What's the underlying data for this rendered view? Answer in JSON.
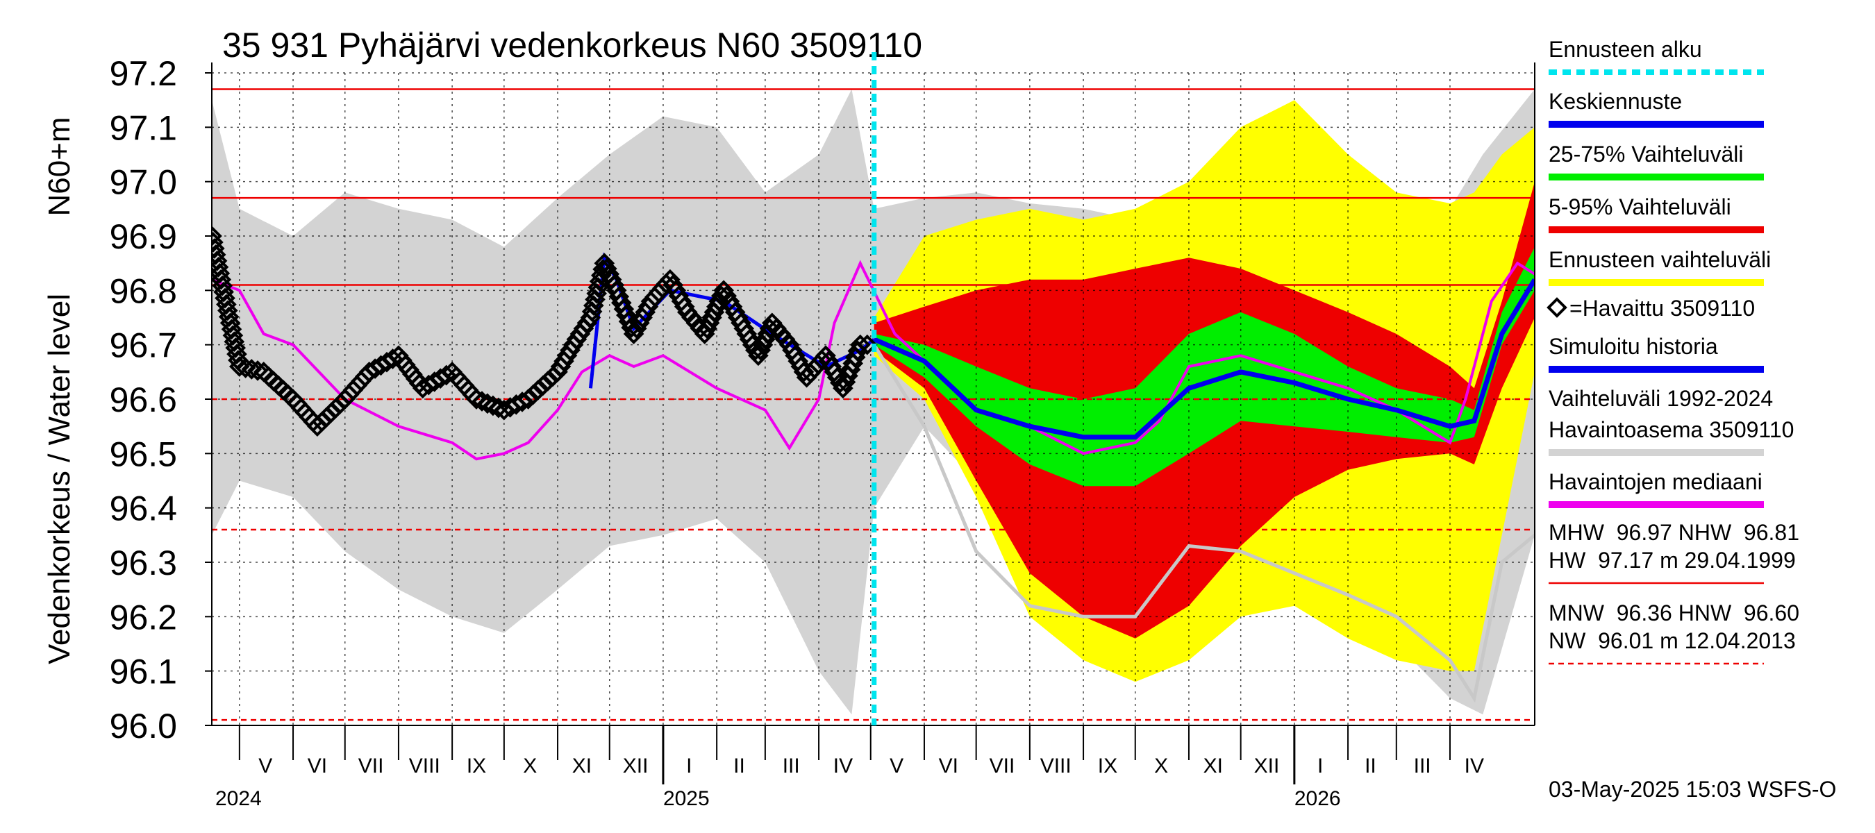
{
  "chart_data": {
    "type": "area",
    "title": "35 931 Pyhäjärvi vedenkorkeus N60 3509110",
    "ylabel_left": "Vedenkorkeus / Water level",
    "ylabel_right": "N60+m",
    "ylim": [
      96.0,
      97.2
    ],
    "yticks": [
      "96.0",
      "96.1",
      "96.2",
      "96.3",
      "96.4",
      "96.5",
      "96.6",
      "96.7",
      "96.8",
      "96.9",
      "97.0",
      "97.1",
      "97.2"
    ],
    "x_range": [
      "2024-04-15",
      "2026-05-20"
    ],
    "month_labels": [
      {
        "label": "V",
        "date": "2024-05-16"
      },
      {
        "label": "VI",
        "date": "2024-06-15"
      },
      {
        "label": "VII",
        "date": "2024-07-16"
      },
      {
        "label": "VIII",
        "date": "2024-08-16"
      },
      {
        "label": "IX",
        "date": "2024-09-15"
      },
      {
        "label": "X",
        "date": "2024-10-16"
      },
      {
        "label": "XI",
        "date": "2024-11-15"
      },
      {
        "label": "XII",
        "date": "2024-12-16"
      },
      {
        "label": "I",
        "date": "2025-01-16"
      },
      {
        "label": "II",
        "date": "2025-02-14"
      },
      {
        "label": "III",
        "date": "2025-03-16"
      },
      {
        "label": "IV",
        "date": "2025-04-15"
      },
      {
        "label": "V",
        "date": "2025-05-16"
      },
      {
        "label": "VI",
        "date": "2025-06-15"
      },
      {
        "label": "VII",
        "date": "2025-07-16"
      },
      {
        "label": "VIII",
        "date": "2025-08-16"
      },
      {
        "label": "IX",
        "date": "2025-09-15"
      },
      {
        "label": "X",
        "date": "2025-10-16"
      },
      {
        "label": "XI",
        "date": "2025-11-15"
      },
      {
        "label": "XII",
        "date": "2025-12-16"
      },
      {
        "label": "I",
        "date": "2026-01-16"
      },
      {
        "label": "II",
        "date": "2026-02-14"
      },
      {
        "label": "III",
        "date": "2026-03-16"
      },
      {
        "label": "IV",
        "date": "2026-04-15"
      }
    ],
    "year_labels": [
      {
        "label": "2024",
        "date": "2024-04-15"
      },
      {
        "label": "2025",
        "date": "2025-01-01"
      },
      {
        "label": "2026",
        "date": "2026-01-01"
      }
    ],
    "forecast_start": "2025-05-03",
    "reference_lines": [
      {
        "name": "HW",
        "value": 97.17,
        "style": "solid"
      },
      {
        "name": "MHW",
        "value": 96.97,
        "style": "solid"
      },
      {
        "name": "NHW",
        "value": 96.81,
        "style": "solid"
      },
      {
        "name": "HNW",
        "value": 96.6,
        "style": "dashed"
      },
      {
        "name": "MNW",
        "value": 96.36,
        "style": "dashed"
      },
      {
        "name": "NW",
        "value": 96.01,
        "style": "dashed"
      }
    ],
    "historical_range": {
      "x": [
        "2024-04-15",
        "2024-05-01",
        "2024-06-01",
        "2024-07-01",
        "2024-08-01",
        "2024-09-01",
        "2024-10-01",
        "2024-11-01",
        "2024-12-01",
        "2025-01-01",
        "2025-02-01",
        "2025-03-01",
        "2025-04-01",
        "2025-04-20",
        "2025-05-03",
        "2025-06-01",
        "2025-07-01",
        "2025-08-01",
        "2025-09-01",
        "2025-10-01",
        "2025-11-01",
        "2025-12-01",
        "2026-01-01",
        "2026-02-01",
        "2026-03-01",
        "2026-04-01",
        "2026-04-20",
        "2026-05-20"
      ],
      "low": [
        96.35,
        96.45,
        96.42,
        96.32,
        96.25,
        96.2,
        96.17,
        96.25,
        96.33,
        96.35,
        96.38,
        96.3,
        96.1,
        96.02,
        96.4,
        96.55,
        96.45,
        96.35,
        96.28,
        96.25,
        96.24,
        96.26,
        96.27,
        96.24,
        96.15,
        96.05,
        96.02,
        96.35
      ],
      "high": [
        97.15,
        96.95,
        96.9,
        96.98,
        96.95,
        96.93,
        96.88,
        96.97,
        97.05,
        97.12,
        97.1,
        96.98,
        97.05,
        97.17,
        96.95,
        96.97,
        96.98,
        96.96,
        96.95,
        96.93,
        96.93,
        97.1,
        97.13,
        97.05,
        96.93,
        96.95,
        97.05,
        97.17
      ]
    },
    "forecast_bands": {
      "x": [
        "2025-05-03",
        "2025-06-01",
        "2025-07-01",
        "2025-08-01",
        "2025-09-01",
        "2025-10-01",
        "2025-11-01",
        "2025-12-01",
        "2026-01-01",
        "2026-02-01",
        "2026-03-01",
        "2026-04-01",
        "2026-04-15",
        "2026-05-01",
        "2026-05-20"
      ],
      "p0_low": [
        96.68,
        96.6,
        96.42,
        96.2,
        96.12,
        96.08,
        96.12,
        96.2,
        96.22,
        96.16,
        96.12,
        96.1,
        96.1,
        96.35,
        96.65
      ],
      "p100_high": [
        96.75,
        96.9,
        96.93,
        96.95,
        96.93,
        96.95,
        97.0,
        97.1,
        97.15,
        97.05,
        96.98,
        96.96,
        96.98,
        97.05,
        97.1
      ],
      "p5": [
        96.69,
        96.62,
        96.45,
        96.28,
        96.2,
        96.16,
        96.22,
        96.33,
        96.42,
        96.47,
        96.49,
        96.5,
        96.48,
        96.62,
        96.75
      ],
      "p95": [
        96.74,
        96.77,
        96.8,
        96.82,
        96.82,
        96.84,
        96.86,
        96.84,
        96.8,
        96.76,
        96.72,
        96.66,
        96.62,
        96.78,
        97.0
      ],
      "p25": [
        96.7,
        96.64,
        96.55,
        96.48,
        96.44,
        96.44,
        96.5,
        96.56,
        96.55,
        96.54,
        96.53,
        96.52,
        96.53,
        96.7,
        96.8
      ],
      "p75": [
        96.72,
        96.7,
        96.66,
        96.62,
        96.6,
        96.62,
        96.72,
        96.76,
        96.72,
        96.66,
        96.62,
        96.6,
        96.58,
        96.76,
        96.88
      ],
      "median": [
        96.71,
        96.67,
        96.58,
        96.55,
        96.53,
        96.53,
        96.62,
        96.65,
        96.63,
        96.6,
        96.58,
        96.55,
        96.56,
        96.72,
        96.82
      ]
    },
    "observed": {
      "x": [
        "2024-04-15",
        "2024-05-01",
        "2024-05-15",
        "2024-06-01",
        "2024-06-15",
        "2024-07-01",
        "2024-07-15",
        "2024-08-01",
        "2024-08-15",
        "2024-09-01",
        "2024-09-15",
        "2024-10-01",
        "2024-10-15",
        "2024-11-01",
        "2024-11-10",
        "2024-11-20",
        "2024-11-28",
        "2024-12-05",
        "2024-12-15",
        "2024-12-25",
        "2025-01-05",
        "2025-01-15",
        "2025-01-25",
        "2025-02-05",
        "2025-02-15",
        "2025-02-25",
        "2025-03-05",
        "2025-03-15",
        "2025-03-25",
        "2025-04-05",
        "2025-04-15",
        "2025-04-25",
        "2025-05-03"
      ],
      "values": [
        96.9,
        96.66,
        96.65,
        96.6,
        96.55,
        96.6,
        96.65,
        96.68,
        96.62,
        96.65,
        96.6,
        96.58,
        96.6,
        96.65,
        96.7,
        96.75,
        96.85,
        96.8,
        96.72,
        96.78,
        96.82,
        96.76,
        96.72,
        96.8,
        96.74,
        96.68,
        96.74,
        96.7,
        96.64,
        96.68,
        96.62,
        96.7,
        96.7
      ]
    },
    "simulated_history": {
      "x": [
        "2024-11-20",
        "2024-11-28",
        "2024-12-05",
        "2024-12-15",
        "2025-01-05",
        "2025-02-05",
        "2025-03-05",
        "2025-04-05",
        "2025-04-25",
        "2025-05-03"
      ],
      "values": [
        96.62,
        96.86,
        96.82,
        96.73,
        96.8,
        96.78,
        96.72,
        96.66,
        96.69,
        96.71
      ]
    },
    "median_observations": {
      "x": [
        "2024-04-15",
        "2024-05-01",
        "2024-05-15",
        "2024-06-01",
        "2024-07-01",
        "2024-08-01",
        "2024-09-01",
        "2024-09-15",
        "2024-10-01",
        "2024-10-15",
        "2024-11-01",
        "2024-11-15",
        "2024-12-01",
        "2024-12-15",
        "2025-01-01",
        "2025-02-01",
        "2025-03-01",
        "2025-03-15",
        "2025-04-01",
        "2025-04-10",
        "2025-04-25",
        "2025-05-15",
        "2025-06-01",
        "2025-07-01",
        "2025-08-01",
        "2025-09-01",
        "2025-10-01",
        "2025-10-15",
        "2025-11-01",
        "2025-12-01",
        "2026-01-01",
        "2026-02-01",
        "2026-03-01",
        "2026-04-01",
        "2026-04-10",
        "2026-04-25",
        "2026-05-10",
        "2026-05-20"
      ],
      "values": [
        96.82,
        96.8,
        96.72,
        96.7,
        96.6,
        96.55,
        96.52,
        96.49,
        96.5,
        96.52,
        96.58,
        96.65,
        96.68,
        96.66,
        96.68,
        96.62,
        96.58,
        96.51,
        96.6,
        96.74,
        96.85,
        96.72,
        96.67,
        96.58,
        96.55,
        96.5,
        96.52,
        96.56,
        96.66,
        96.68,
        96.65,
        96.62,
        96.58,
        96.52,
        96.6,
        96.78,
        96.85,
        96.83
      ]
    },
    "dry_year_trace": {
      "x": [
        "2025-05-03",
        "2025-06-01",
        "2025-07-01",
        "2025-08-01",
        "2025-09-01",
        "2025-10-01",
        "2025-11-01",
        "2025-12-01",
        "2026-01-01",
        "2026-02-01",
        "2026-03-01",
        "2026-04-01",
        "2026-04-15",
        "2026-05-01",
        "2026-05-20"
      ],
      "values": [
        96.7,
        96.55,
        96.32,
        96.22,
        96.2,
        96.2,
        96.33,
        96.32,
        96.28,
        96.24,
        96.2,
        96.12,
        96.05,
        96.3,
        96.35
      ]
    }
  },
  "legend": {
    "items": [
      {
        "label": "Ennusteen alku",
        "color": "#00e5ee",
        "kind": "dashed"
      },
      {
        "label": "Keskiennuste",
        "color": "#0000ee",
        "kind": "line"
      },
      {
        "label": "25-75% Vaihteluväli",
        "color": "#00ee00",
        "kind": "line"
      },
      {
        "label": "5-95% Vaihteluväli",
        "color": "#ee0000",
        "kind": "line"
      },
      {
        "label": "Ennusteen vaihteluväli",
        "color": "#ffff00",
        "kind": "line"
      },
      {
        "label": "=Havaittu 3509110",
        "color": "#000000",
        "kind": "diamond"
      },
      {
        "label": "Simuloitu historia",
        "color": "#0000ee",
        "kind": "line"
      },
      {
        "label": "Vaihteluväli 1992-2024",
        "color": "#d3d3d3",
        "kind": "none"
      },
      {
        "label": " Havaintoasema 3509110",
        "color": "#d3d3d3",
        "kind": "line"
      },
      {
        "label": "Havaintojen mediaani",
        "color": "#ee00ee",
        "kind": "line"
      }
    ],
    "stats1": {
      "line1": "MHW  96.97 NHW  96.81",
      "line2": "HW  97.17 m 29.04.1999"
    },
    "stats2": {
      "line1": "MNW  96.36 HNW  96.60",
      "line2": "NW  96.01 m 12.04.2013"
    }
  },
  "footer": {
    "timestamp": "03-May-2025 15:03 WSFS-O"
  },
  "colors": {
    "history_band": "#d3d3d3",
    "forecast_full": "#ffff00",
    "forecast_5_95": "#ee0000",
    "forecast_25_75": "#00ee00",
    "median_forecast": "#0000ee",
    "observed": "#000000",
    "median_obs": "#ee00ee",
    "ref_line": "#ee0000",
    "forecast_start": "#00e5ee",
    "dry_trace": "#c8c8c8"
  }
}
